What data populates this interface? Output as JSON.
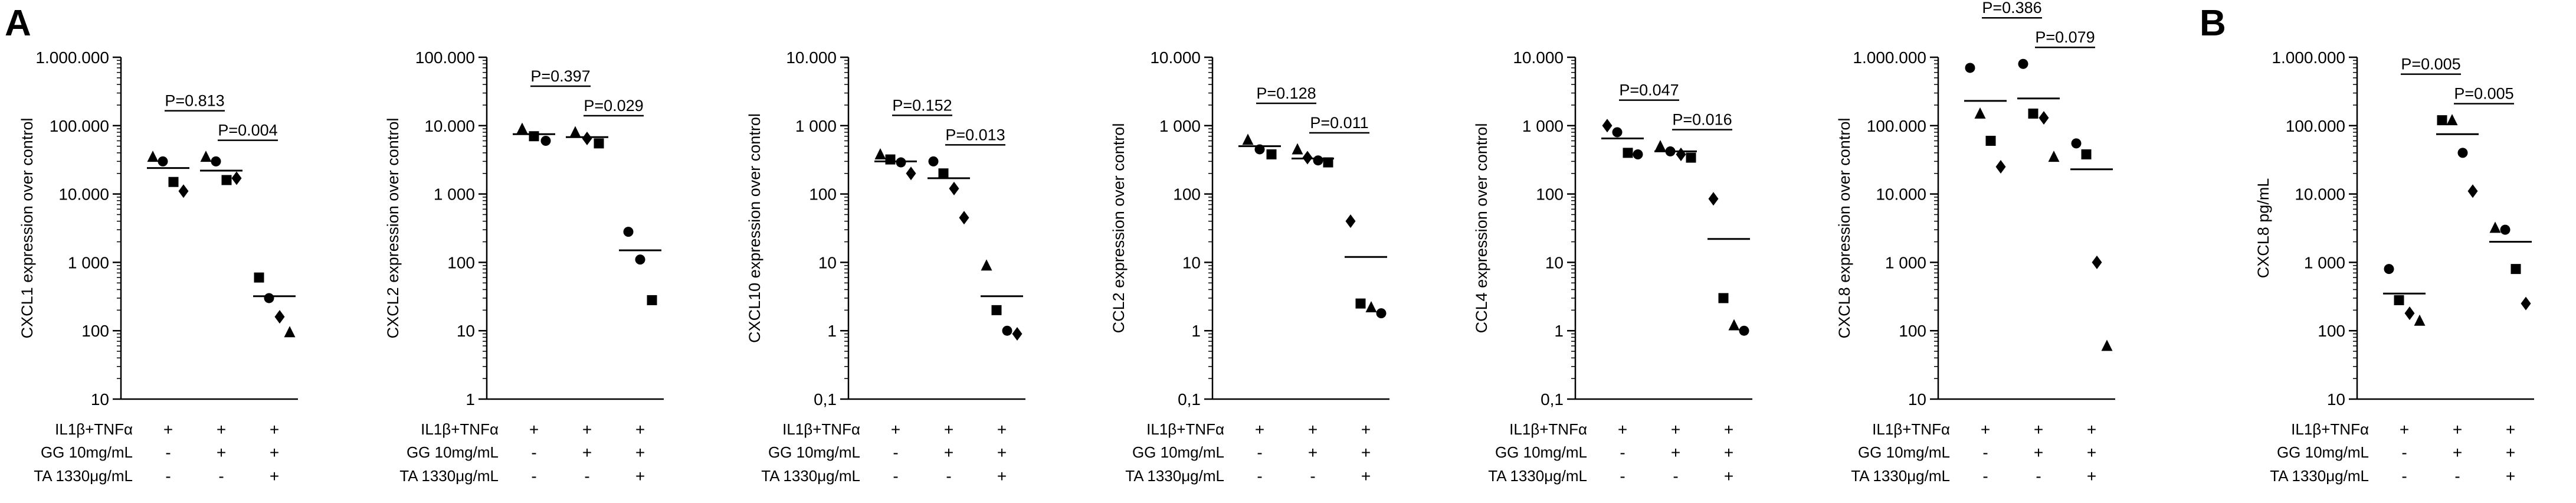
{
  "panel_labels": [
    "A",
    "B"
  ],
  "condition_rows": [
    "IL1β+TNFα",
    "GG 10mg/mL",
    "TA 1330μg/mL"
  ],
  "condition_signs": [
    [
      "+",
      "+",
      "+"
    ],
    [
      "-",
      "+",
      "+"
    ],
    [
      "-",
      "-",
      "+"
    ]
  ],
  "colors": {
    "ink": "#000000",
    "background": "#ffffff"
  },
  "chart_data": [
    {
      "type": "scatter",
      "panel": "A",
      "scale": "log",
      "ylabel": "CXCL1 expression over control",
      "ylim": [
        10,
        1000000
      ],
      "ticks": [
        {
          "v": 10,
          "label": "10"
        },
        {
          "v": 100,
          "label": "100"
        },
        {
          "v": 1000,
          "label": "1 000"
        },
        {
          "v": 10000,
          "label": "10.000"
        },
        {
          "v": 100000,
          "label": "100.000"
        },
        {
          "v": 1000000,
          "label": "1.000.000"
        }
      ],
      "groups": [
        {
          "mean": 24000,
          "points": [
            {
              "shape": "triangle",
              "value": 35000
            },
            {
              "shape": "circle",
              "value": 30000
            },
            {
              "shape": "square",
              "value": 15000
            },
            {
              "shape": "diamond",
              "value": 11000
            }
          ]
        },
        {
          "mean": 22000,
          "points": [
            {
              "shape": "triangle",
              "value": 35000
            },
            {
              "shape": "circle",
              "value": 30000
            },
            {
              "shape": "square",
              "value": 16000
            },
            {
              "shape": "diamond",
              "value": 17000
            }
          ]
        },
        {
          "mean": 320,
          "points": [
            {
              "shape": "square",
              "value": 600
            },
            {
              "shape": "circle",
              "value": 300
            },
            {
              "shape": "diamond",
              "value": 160
            },
            {
              "shape": "triangle",
              "value": 95
            }
          ]
        }
      ],
      "comparisons": [
        {
          "from": 0,
          "to": 1,
          "label": "P=0.813"
        },
        {
          "from": 1,
          "to": 2,
          "label": "P=0.004"
        }
      ]
    },
    {
      "type": "scatter",
      "panel": "A",
      "scale": "log",
      "ylabel": "CXCL2 expression over control",
      "ylim": [
        1,
        100000
      ],
      "ticks": [
        {
          "v": 1,
          "label": "1"
        },
        {
          "v": 10,
          "label": "10"
        },
        {
          "v": 100,
          "label": "100"
        },
        {
          "v": 1000,
          "label": "1 000"
        },
        {
          "v": 10000,
          "label": "10.000"
        },
        {
          "v": 100000,
          "label": "100.000"
        }
      ],
      "groups": [
        {
          "mean": 7500,
          "points": [
            {
              "shape": "triangle",
              "value": 9000
            },
            {
              "shape": "square",
              "value": 7000
            },
            {
              "shape": "circle",
              "value": 6000
            }
          ]
        },
        {
          "mean": 6800,
          "points": [
            {
              "shape": "triangle",
              "value": 8000
            },
            {
              "shape": "diamond",
              "value": 6500
            },
            {
              "shape": "square",
              "value": 5500
            }
          ]
        },
        {
          "mean": 150,
          "points": [
            {
              "shape": "circle",
              "value": 280
            },
            {
              "shape": "circle",
              "value": 110
            },
            {
              "shape": "square",
              "value": 28
            }
          ]
        }
      ],
      "comparisons": [
        {
          "from": 0,
          "to": 1,
          "label": "P=0.397"
        },
        {
          "from": 1,
          "to": 2,
          "label": "P=0.029"
        }
      ]
    },
    {
      "type": "scatter",
      "panel": "A",
      "scale": "log",
      "ylabel": "CXCL10 expression over control",
      "ylim": [
        0.1,
        10000
      ],
      "ticks": [
        {
          "v": 0.1,
          "label": "0,1"
        },
        {
          "v": 1,
          "label": "1"
        },
        {
          "v": 10,
          "label": "10"
        },
        {
          "v": 100,
          "label": "100"
        },
        {
          "v": 1000,
          "label": "1 000"
        },
        {
          "v": 10000,
          "label": "10.000"
        }
      ],
      "groups": [
        {
          "mean": 300,
          "points": [
            {
              "shape": "triangle",
              "value": 380
            },
            {
              "shape": "square",
              "value": 320
            },
            {
              "shape": "circle",
              "value": 290
            },
            {
              "shape": "diamond",
              "value": 200
            }
          ]
        },
        {
          "mean": 170,
          "points": [
            {
              "shape": "circle",
              "value": 300
            },
            {
              "shape": "square",
              "value": 200
            },
            {
              "shape": "diamond",
              "value": 120
            },
            {
              "shape": "diamond",
              "value": 45
            }
          ]
        },
        {
          "mean": 3.2,
          "points": [
            {
              "shape": "triangle",
              "value": 9
            },
            {
              "shape": "square",
              "value": 2
            },
            {
              "shape": "circle",
              "value": 1
            },
            {
              "shape": "diamond",
              "value": 0.9
            }
          ]
        }
      ],
      "comparisons": [
        {
          "from": 0,
          "to": 1,
          "label": "P=0.152"
        },
        {
          "from": 1,
          "to": 2,
          "label": "P=0.013"
        }
      ]
    },
    {
      "type": "scatter",
      "panel": "A",
      "scale": "log",
      "ylabel": "CCL2 expression over control",
      "ylim": [
        0.1,
        10000
      ],
      "ticks": [
        {
          "v": 0.1,
          "label": "0,1"
        },
        {
          "v": 1,
          "label": "1"
        },
        {
          "v": 10,
          "label": "10"
        },
        {
          "v": 100,
          "label": "100"
        },
        {
          "v": 1000,
          "label": "1 000"
        },
        {
          "v": 10000,
          "label": "10.000"
        }
      ],
      "groups": [
        {
          "mean": 500,
          "points": [
            {
              "shape": "triangle",
              "value": 620
            },
            {
              "shape": "circle",
              "value": 450
            },
            {
              "shape": "square",
              "value": 380
            }
          ]
        },
        {
          "mean": 330,
          "points": [
            {
              "shape": "triangle",
              "value": 450
            },
            {
              "shape": "diamond",
              "value": 340
            },
            {
              "shape": "circle",
              "value": 310
            },
            {
              "shape": "square",
              "value": 290
            }
          ]
        },
        {
          "mean": 12,
          "points": [
            {
              "shape": "diamond",
              "value": 40
            },
            {
              "shape": "square",
              "value": 2.5
            },
            {
              "shape": "triangle",
              "value": 2.2
            },
            {
              "shape": "circle",
              "value": 1.8
            }
          ]
        }
      ],
      "comparisons": [
        {
          "from": 0,
          "to": 1,
          "label": "P=0.128"
        },
        {
          "from": 1,
          "to": 2,
          "label": "P=0.011"
        }
      ]
    },
    {
      "type": "scatter",
      "panel": "A",
      "scale": "log",
      "ylabel": "CCL4 expression over control",
      "ylim": [
        0.1,
        10000
      ],
      "ticks": [
        {
          "v": 0.1,
          "label": "0,1"
        },
        {
          "v": 1,
          "label": "1"
        },
        {
          "v": 10,
          "label": "10"
        },
        {
          "v": 100,
          "label": "100"
        },
        {
          "v": 1000,
          "label": "1 000"
        },
        {
          "v": 10000,
          "label": "10.000"
        }
      ],
      "groups": [
        {
          "mean": 650,
          "points": [
            {
              "shape": "diamond",
              "value": 1000
            },
            {
              "shape": "circle",
              "value": 800
            },
            {
              "shape": "square",
              "value": 400
            },
            {
              "shape": "circle",
              "value": 380
            }
          ]
        },
        {
          "mean": 420,
          "points": [
            {
              "shape": "triangle",
              "value": 500
            },
            {
              "shape": "circle",
              "value": 420
            },
            {
              "shape": "diamond",
              "value": 380
            },
            {
              "shape": "square",
              "value": 340
            }
          ]
        },
        {
          "mean": 22,
          "points": [
            {
              "shape": "diamond",
              "value": 85
            },
            {
              "shape": "square",
              "value": 3
            },
            {
              "shape": "triangle",
              "value": 1.2
            },
            {
              "shape": "circle",
              "value": 1.0
            }
          ]
        }
      ],
      "comparisons": [
        {
          "from": 0,
          "to": 1,
          "label": "P=0.047"
        },
        {
          "from": 1,
          "to": 2,
          "label": "P=0.016"
        }
      ]
    },
    {
      "type": "scatter",
      "panel": "A",
      "scale": "log",
      "ylabel": "CXCL8 expression over control",
      "ylim": [
        10,
        1000000
      ],
      "ticks": [
        {
          "v": 10,
          "label": "10"
        },
        {
          "v": 100,
          "label": "100"
        },
        {
          "v": 1000,
          "label": "1 000"
        },
        {
          "v": 10000,
          "label": "10.000"
        },
        {
          "v": 100000,
          "label": "100.000"
        },
        {
          "v": 1000000,
          "label": "1.000.000"
        }
      ],
      "groups": [
        {
          "mean": 230000,
          "points": [
            {
              "shape": "circle",
              "value": 700000
            },
            {
              "shape": "triangle",
              "value": 150000
            },
            {
              "shape": "square",
              "value": 60000
            },
            {
              "shape": "diamond",
              "value": 25000
            }
          ]
        },
        {
          "mean": 250000,
          "points": [
            {
              "shape": "circle",
              "value": 800000
            },
            {
              "shape": "square",
              "value": 150000
            },
            {
              "shape": "diamond",
              "value": 130000
            },
            {
              "shape": "triangle",
              "value": 35000
            }
          ]
        },
        {
          "mean": 23000,
          "points": [
            {
              "shape": "circle",
              "value": 55000
            },
            {
              "shape": "square",
              "value": 38000
            },
            {
              "shape": "diamond",
              "value": 1000
            },
            {
              "shape": "triangle",
              "value": 60
            }
          ]
        }
      ],
      "comparisons": [
        {
          "from": 0,
          "to": 1,
          "label": "P=0.386"
        },
        {
          "from": 1,
          "to": 2,
          "label": "P=0.079"
        }
      ]
    },
    {
      "type": "scatter",
      "panel": "B",
      "scale": "log",
      "ylabel": "CXCL8 pg/mL",
      "ylim": [
        10,
        1000000
      ],
      "ticks": [
        {
          "v": 10,
          "label": "10"
        },
        {
          "v": 100,
          "label": "100"
        },
        {
          "v": 1000,
          "label": "1 000"
        },
        {
          "v": 10000,
          "label": "10.000"
        },
        {
          "v": 100000,
          "label": "100.000"
        },
        {
          "v": 1000000,
          "label": "1.000.000"
        }
      ],
      "groups": [
        {
          "mean": 350,
          "points": [
            {
              "shape": "circle",
              "value": 800
            },
            {
              "shape": "square",
              "value": 280
            },
            {
              "shape": "diamond",
              "value": 180
            },
            {
              "shape": "triangle",
              "value": 140
            }
          ]
        },
        {
          "mean": 75000,
          "points": [
            {
              "shape": "square",
              "value": 120000
            },
            {
              "shape": "triangle",
              "value": 120000
            },
            {
              "shape": "circle",
              "value": 40000
            },
            {
              "shape": "diamond",
              "value": 11000
            }
          ]
        },
        {
          "mean": 2000,
          "points": [
            {
              "shape": "triangle",
              "value": 3200
            },
            {
              "shape": "circle",
              "value": 3000
            },
            {
              "shape": "square",
              "value": 800
            },
            {
              "shape": "diamond",
              "value": 250
            }
          ]
        }
      ],
      "comparisons": [
        {
          "from": 0,
          "to": 1,
          "label": "P=0.005"
        },
        {
          "from": 1,
          "to": 2,
          "label": "P=0.005"
        }
      ]
    }
  ]
}
